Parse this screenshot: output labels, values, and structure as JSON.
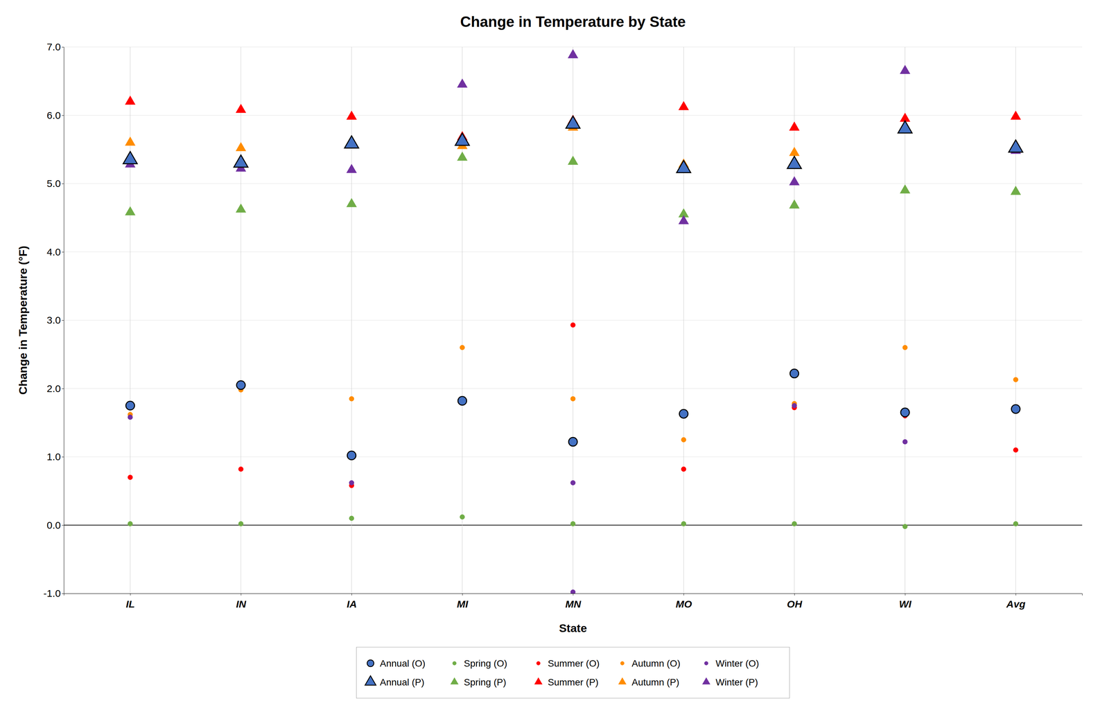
{
  "chart_data": {
    "type": "scatter",
    "title": "Change in Temperature by State",
    "x_label": "State",
    "y_label": "Change in Temperature (°F)",
    "categories": [
      "IL",
      "IN",
      "IA",
      "MI",
      "MN",
      "MO",
      "OH",
      "WI",
      "Avg"
    ],
    "ylim": [
      -1.0,
      7.0
    ],
    "yticks": [
      {
        "value": -1.0,
        "label": "-1.0"
      },
      {
        "value": 0.0,
        "label": "0.0"
      },
      {
        "value": 1.0,
        "label": "1.0"
      },
      {
        "value": 2.0,
        "label": "2.0"
      },
      {
        "value": 3.0,
        "label": "3.0"
      },
      {
        "value": 4.0,
        "label": "4.0"
      },
      {
        "value": 5.0,
        "label": "5.0"
      },
      {
        "value": 6.0,
        "label": "6.0"
      },
      {
        "value": 7.0,
        "label": "7.0"
      }
    ],
    "grid": true,
    "legend": "bottom",
    "series": [
      {
        "name": "Annual (O)",
        "color": "#4472C4",
        "marker": "circle",
        "values": [
          1.75,
          2.05,
          1.02,
          1.82,
          1.22,
          1.63,
          2.22,
          1.65,
          1.7
        ]
      },
      {
        "name": "Spring (O)",
        "color": "#70AD47",
        "marker": "circle",
        "values": [
          0.02,
          0.02,
          0.1,
          0.12,
          0.02,
          0.02,
          0.02,
          -0.02,
          0.02
        ]
      },
      {
        "name": "Summer (O)",
        "color": "#FF0000",
        "marker": "circle",
        "values": [
          0.7,
          0.82,
          0.58,
          1.85,
          2.93,
          0.82,
          1.72,
          1.6,
          1.1
        ]
      },
      {
        "name": "Autumn (O)",
        "color": "#FF8C00",
        "marker": "circle",
        "values": [
          1.62,
          1.98,
          1.85,
          2.6,
          1.85,
          1.25,
          1.78,
          2.6,
          2.13
        ]
      },
      {
        "name": "Winter (O)",
        "color": "#7030A0",
        "marker": "circle",
        "values": [
          1.58,
          2.07,
          0.62,
          1.8,
          0.62,
          1.62,
          1.75,
          1.22,
          1.7
        ]
      },
      {
        "name": "Annual (P)",
        "color": "#4472C4",
        "marker": "triangle",
        "values": [
          5.35,
          5.3,
          5.58,
          5.62,
          5.87,
          5.22,
          5.28,
          5.8,
          5.52
        ]
      },
      {
        "name": "Spring (P)",
        "color": "#70AD47",
        "marker": "triangle",
        "values": [
          4.58,
          4.62,
          4.7,
          5.38,
          5.32,
          4.55,
          4.68,
          4.9,
          4.88
        ]
      },
      {
        "name": "Summer (P)",
        "color": "#FF0000",
        "marker": "triangle",
        "values": [
          6.2,
          6.08,
          5.98,
          5.68,
          5.92,
          6.12,
          5.82,
          5.95,
          5.98
        ]
      },
      {
        "name": "Autumn (P)",
        "color": "#FF8C00",
        "marker": "triangle",
        "values": [
          5.6,
          5.52,
          5.58,
          5.55,
          5.82,
          5.28,
          5.45,
          5.8,
          5.52
        ]
      },
      {
        "name": "Winter (P)",
        "color": "#7030A0",
        "marker": "triangle",
        "values": [
          5.28,
          5.22,
          5.2,
          6.45,
          6.88,
          4.45,
          5.02,
          6.65,
          5.48
        ]
      },
      {
        "color": "#7030A0",
        "marker": "circle",
        "values": [
          null,
          null,
          null,
          null,
          -0.98,
          null,
          null,
          null,
          null
        ]
      }
    ]
  }
}
